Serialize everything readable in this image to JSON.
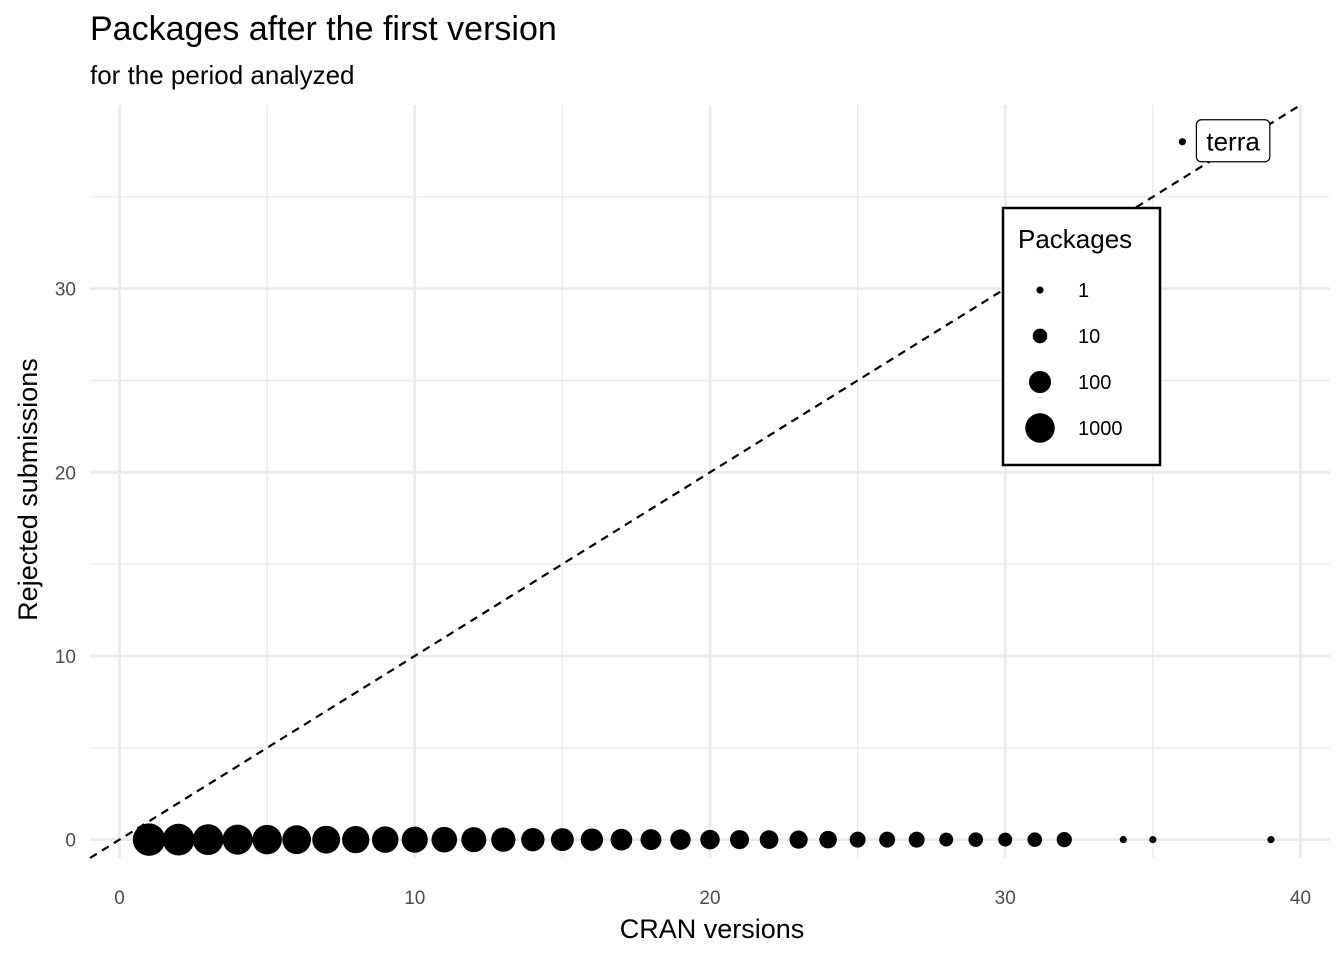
{
  "chart_data": {
    "type": "scatter",
    "title": "Packages after the first version",
    "subtitle": "for the period analyzed",
    "xlabel": "CRAN versions",
    "ylabel": "Rejected submissions",
    "xlim": [
      -1,
      41
    ],
    "ylim": [
      -1,
      40
    ],
    "x_ticks": [
      0,
      10,
      20,
      30,
      40
    ],
    "y_ticks": [
      0,
      10,
      20,
      30
    ],
    "grid": true,
    "reference_line": {
      "style": "dashed",
      "slope": 1,
      "intercept": 0
    },
    "size_legend": {
      "title": "Packages",
      "placement": "top-right",
      "breaks": [
        {
          "label": "1",
          "value": 1
        },
        {
          "label": "10",
          "value": 10
        },
        {
          "label": "100",
          "value": 100
        },
        {
          "label": "1000",
          "value": 1000
        }
      ]
    },
    "points": [
      {
        "x": 1,
        "y": 0,
        "size": 2500
      },
      {
        "x": 2,
        "y": 0,
        "size": 2000
      },
      {
        "x": 3,
        "y": 0,
        "size": 1500
      },
      {
        "x": 4,
        "y": 0,
        "size": 1200
      },
      {
        "x": 5,
        "y": 0,
        "size": 1000
      },
      {
        "x": 6,
        "y": 0,
        "size": 800
      },
      {
        "x": 7,
        "y": 0,
        "size": 600
      },
      {
        "x": 8,
        "y": 0,
        "size": 500
      },
      {
        "x": 9,
        "y": 0,
        "size": 400
      },
      {
        "x": 10,
        "y": 0,
        "size": 350
      },
      {
        "x": 11,
        "y": 0,
        "size": 300
      },
      {
        "x": 12,
        "y": 0,
        "size": 250
      },
      {
        "x": 13,
        "y": 0,
        "size": 200
      },
      {
        "x": 14,
        "y": 0,
        "size": 150
      },
      {
        "x": 15,
        "y": 0,
        "size": 130
      },
      {
        "x": 16,
        "y": 0,
        "size": 110
      },
      {
        "x": 17,
        "y": 0,
        "size": 90
      },
      {
        "x": 18,
        "y": 0,
        "size": 70
      },
      {
        "x": 19,
        "y": 0,
        "size": 60
      },
      {
        "x": 20,
        "y": 0,
        "size": 45
      },
      {
        "x": 21,
        "y": 0,
        "size": 40
      },
      {
        "x": 22,
        "y": 0,
        "size": 35
      },
      {
        "x": 23,
        "y": 0,
        "size": 30
      },
      {
        "x": 24,
        "y": 0,
        "size": 25
      },
      {
        "x": 25,
        "y": 0,
        "size": 15
      },
      {
        "x": 26,
        "y": 0,
        "size": 15
      },
      {
        "x": 27,
        "y": 0,
        "size": 15
      },
      {
        "x": 28,
        "y": 0,
        "size": 8
      },
      {
        "x": 29,
        "y": 0,
        "size": 10
      },
      {
        "x": 30,
        "y": 0,
        "size": 8
      },
      {
        "x": 31,
        "y": 0,
        "size": 10
      },
      {
        "x": 32,
        "y": 0,
        "size": 12
      },
      {
        "x": 34,
        "y": 0,
        "size": 1
      },
      {
        "x": 35,
        "y": 0,
        "size": 1
      },
      {
        "x": 39,
        "y": 0,
        "size": 1
      },
      {
        "x": 36,
        "y": 38,
        "size": 1,
        "label": "terra"
      }
    ]
  }
}
